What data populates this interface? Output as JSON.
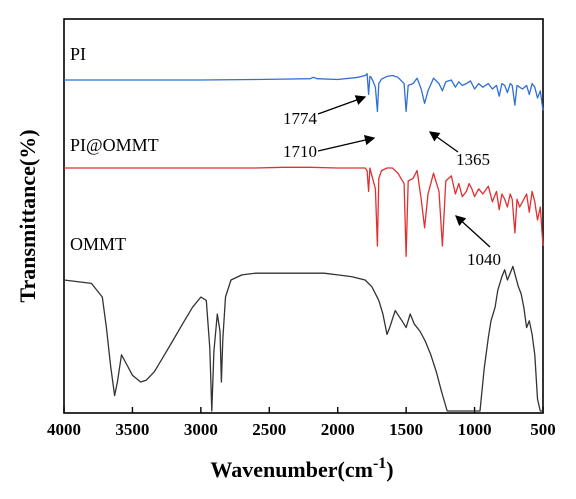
{
  "chart_data": {
    "type": "line",
    "xlabel": "Wavenumber(cm",
    "xlabel_sup": "-1",
    "xlabel_close": ")",
    "ylabel": "Transmittance(%)",
    "xlim": [
      4000,
      500
    ],
    "x_reversed": true,
    "y_ticks_shown": false,
    "x_ticks": [
      4000,
      3500,
      3000,
      2500,
      2000,
      1500,
      1000,
      500
    ],
    "grid": false,
    "series": [
      {
        "name": "PI",
        "color": "#2f6fd6",
        "baseline": 0.9,
        "x": [
          4000,
          3500,
          3000,
          2600,
          2400,
          2200,
          2180,
          2150,
          2000,
          1850,
          1800,
          1785,
          1774,
          1765,
          1755,
          1740,
          1725,
          1710,
          1700,
          1680,
          1640,
          1600,
          1560,
          1515,
          1500,
          1485,
          1450,
          1420,
          1390,
          1365,
          1340,
          1300,
          1260,
          1235,
          1210,
          1170,
          1140,
          1115,
          1090,
          1060,
          1030,
          1000,
          970,
          940,
          900,
          870,
          840,
          820,
          800,
          780,
          760,
          740,
          725,
          705,
          690,
          670,
          650,
          620,
          600,
          580,
          560,
          540,
          520,
          500
        ],
        "y": [
          0.9,
          0.9,
          0.9,
          0.905,
          0.91,
          0.915,
          0.93,
          0.915,
          0.905,
          0.93,
          0.95,
          0.97,
          0.74,
          0.94,
          0.93,
          0.88,
          0.82,
          0.55,
          0.86,
          0.91,
          0.94,
          0.95,
          0.93,
          0.86,
          0.55,
          0.84,
          0.86,
          0.92,
          0.8,
          0.64,
          0.78,
          0.92,
          0.86,
          0.78,
          0.88,
          0.9,
          0.82,
          0.88,
          0.84,
          0.86,
          0.89,
          0.8,
          0.86,
          0.82,
          0.86,
          0.8,
          0.84,
          0.72,
          0.86,
          0.84,
          0.76,
          0.86,
          0.84,
          0.62,
          0.84,
          0.82,
          0.8,
          0.84,
          0.74,
          0.86,
          0.82,
          0.7,
          0.78,
          0.56
        ]
      },
      {
        "name": "PI@OMMT",
        "color": "#e03030",
        "baseline": 0.9,
        "x": [
          4000,
          3500,
          3000,
          2600,
          2400,
          2200,
          2000,
          1850,
          1800,
          1785,
          1774,
          1765,
          1755,
          1740,
          1725,
          1710,
          1700,
          1680,
          1640,
          1600,
          1560,
          1515,
          1500,
          1485,
          1450,
          1420,
          1390,
          1365,
          1340,
          1300,
          1260,
          1235,
          1210,
          1170,
          1140,
          1115,
          1090,
          1060,
          1040,
          1020,
          1000,
          970,
          940,
          900,
          870,
          840,
          820,
          800,
          780,
          760,
          740,
          725,
          705,
          690,
          670,
          650,
          620,
          600,
          580,
          560,
          540,
          520,
          500
        ],
        "y": [
          0.9,
          0.9,
          0.9,
          0.9,
          0.905,
          0.905,
          0.9,
          0.9,
          0.9,
          0.88,
          0.72,
          0.9,
          0.86,
          0.8,
          0.74,
          0.3,
          0.82,
          0.88,
          0.9,
          0.9,
          0.86,
          0.78,
          0.22,
          0.8,
          0.82,
          0.88,
          0.66,
          0.44,
          0.7,
          0.86,
          0.72,
          0.3,
          0.8,
          0.84,
          0.7,
          0.78,
          0.68,
          0.72,
          0.78,
          0.74,
          0.68,
          0.74,
          0.7,
          0.76,
          0.64,
          0.72,
          0.58,
          0.7,
          0.66,
          0.6,
          0.7,
          0.66,
          0.4,
          0.66,
          0.6,
          0.64,
          0.7,
          0.56,
          0.72,
          0.64,
          0.5,
          0.6,
          0.3
        ]
      },
      {
        "name": "OMMT",
        "color": "#333333",
        "baseline": 0.9,
        "x": [
          4000,
          3800,
          3720,
          3690,
          3660,
          3630,
          3610,
          3580,
          3540,
          3500,
          3440,
          3400,
          3340,
          3280,
          3200,
          3120,
          3060,
          3000,
          2960,
          2935,
          2920,
          2905,
          2880,
          2860,
          2850,
          2840,
          2820,
          2780,
          2700,
          2600,
          2500,
          2400,
          2300,
          2200,
          2100,
          2000,
          1900,
          1800,
          1750,
          1700,
          1670,
          1640,
          1620,
          1580,
          1530,
          1500,
          1470,
          1440,
          1400,
          1360,
          1320,
          1280,
          1240,
          1200,
          1160,
          1120,
          1090,
          1060,
          1040,
          1020,
          990,
          960,
          930,
          900,
          880,
          850,
          830,
          800,
          780,
          760,
          740,
          720,
          700,
          680,
          660,
          640,
          620,
          600,
          580,
          560,
          540,
          520,
          500
        ],
        "y": [
          0.9,
          0.88,
          0.8,
          0.62,
          0.4,
          0.22,
          0.3,
          0.46,
          0.4,
          0.34,
          0.3,
          0.31,
          0.36,
          0.44,
          0.55,
          0.66,
          0.74,
          0.8,
          0.78,
          0.5,
          0.06,
          0.48,
          0.7,
          0.6,
          0.3,
          0.55,
          0.8,
          0.9,
          0.93,
          0.94,
          0.94,
          0.94,
          0.94,
          0.94,
          0.94,
          0.93,
          0.92,
          0.9,
          0.86,
          0.78,
          0.7,
          0.58,
          0.62,
          0.72,
          0.66,
          0.62,
          0.7,
          0.64,
          0.6,
          0.54,
          0.46,
          0.36,
          0.24,
          0.1,
          -0.05,
          -0.25,
          -0.48,
          -0.62,
          -0.58,
          -0.42,
          -0.16,
          0.12,
          0.38,
          0.56,
          0.66,
          0.74,
          0.84,
          0.92,
          0.96,
          0.9,
          0.94,
          0.98,
          0.92,
          0.86,
          0.82,
          0.74,
          0.62,
          0.66,
          0.58,
          0.46,
          0.2,
          -0.1,
          0.1
        ]
      }
    ],
    "annotations": [
      {
        "text": "1774",
        "x": 1774,
        "series": "PI"
      },
      {
        "text": "1710",
        "x": 1710,
        "series": "PI"
      },
      {
        "text": "1365",
        "x": 1365,
        "series": "PI"
      },
      {
        "text": "1040",
        "x": 1040,
        "series": "PI@OMMT"
      }
    ]
  }
}
